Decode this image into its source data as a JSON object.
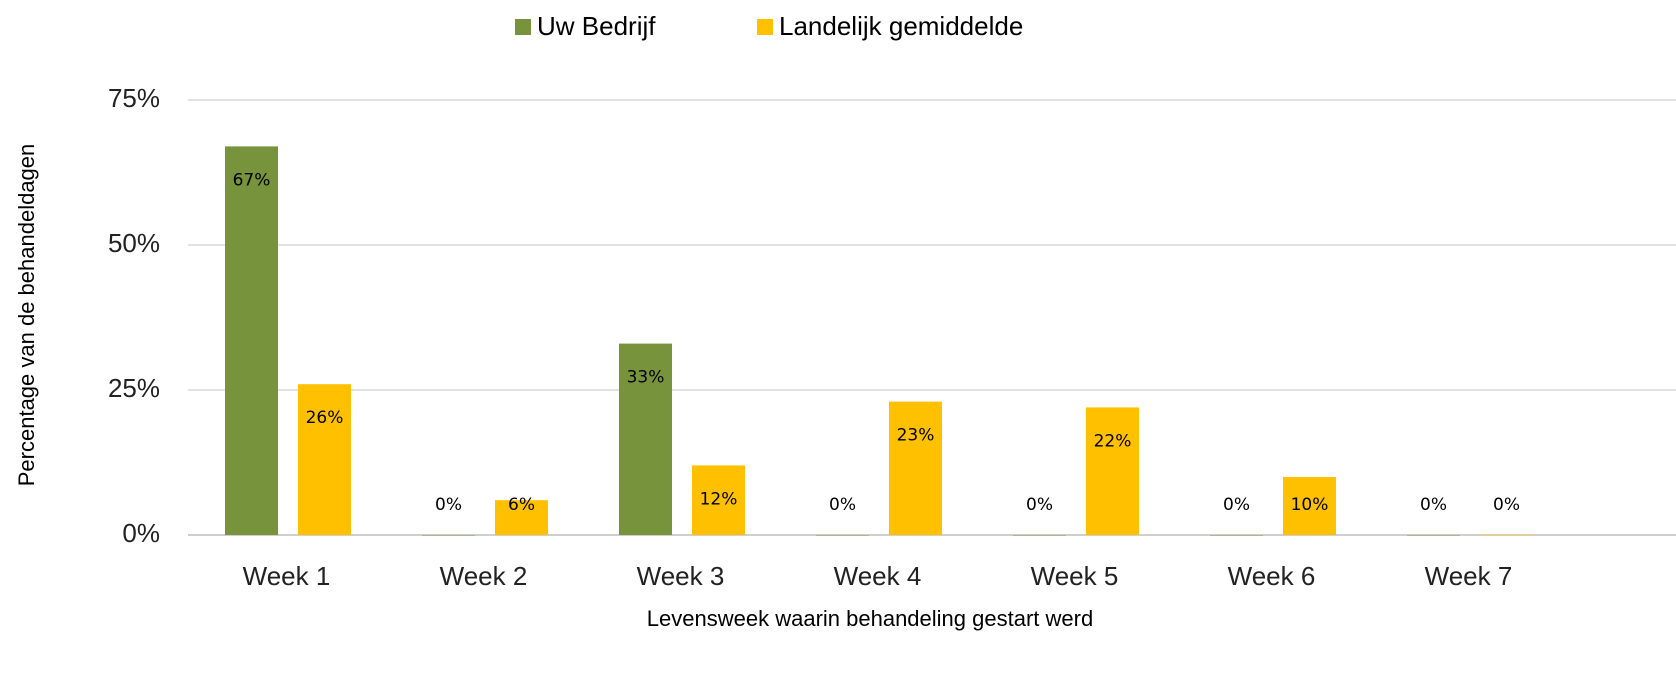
{
  "chart_data": {
    "type": "bar",
    "x_label": "Levensweek waarin behandeling gestart werd",
    "y_label": "Percentage van de behandeldagen",
    "categories": [
      "Week 1",
      "Week 2",
      "Week 3",
      "Week 4",
      "Week 5",
      "Week 6",
      "Week 7"
    ],
    "series": [
      {
        "name": "Uw Bedrijf",
        "color": "#77933c",
        "values": [
          67,
          0,
          33,
          0,
          0,
          0,
          0
        ],
        "value_labels": [
          "67%",
          "0%",
          "33%",
          "0%",
          "0%",
          "0%",
          "0%"
        ]
      },
      {
        "name": "Landelijk gemiddelde",
        "color": "#ffc000",
        "values": [
          26,
          6,
          12,
          23,
          22,
          10,
          0
        ],
        "value_labels": [
          "26%",
          "6%",
          "12%",
          "23%",
          "22%",
          "10%",
          "0%"
        ]
      }
    ],
    "ylim": [
      0,
      75
    ],
    "yticks": [
      {
        "value": 0,
        "label": "0%"
      },
      {
        "value": 25,
        "label": "25%"
      },
      {
        "value": 50,
        "label": "50%"
      },
      {
        "value": 75,
        "label": "75%"
      }
    ],
    "grid": true,
    "legend": "top"
  }
}
